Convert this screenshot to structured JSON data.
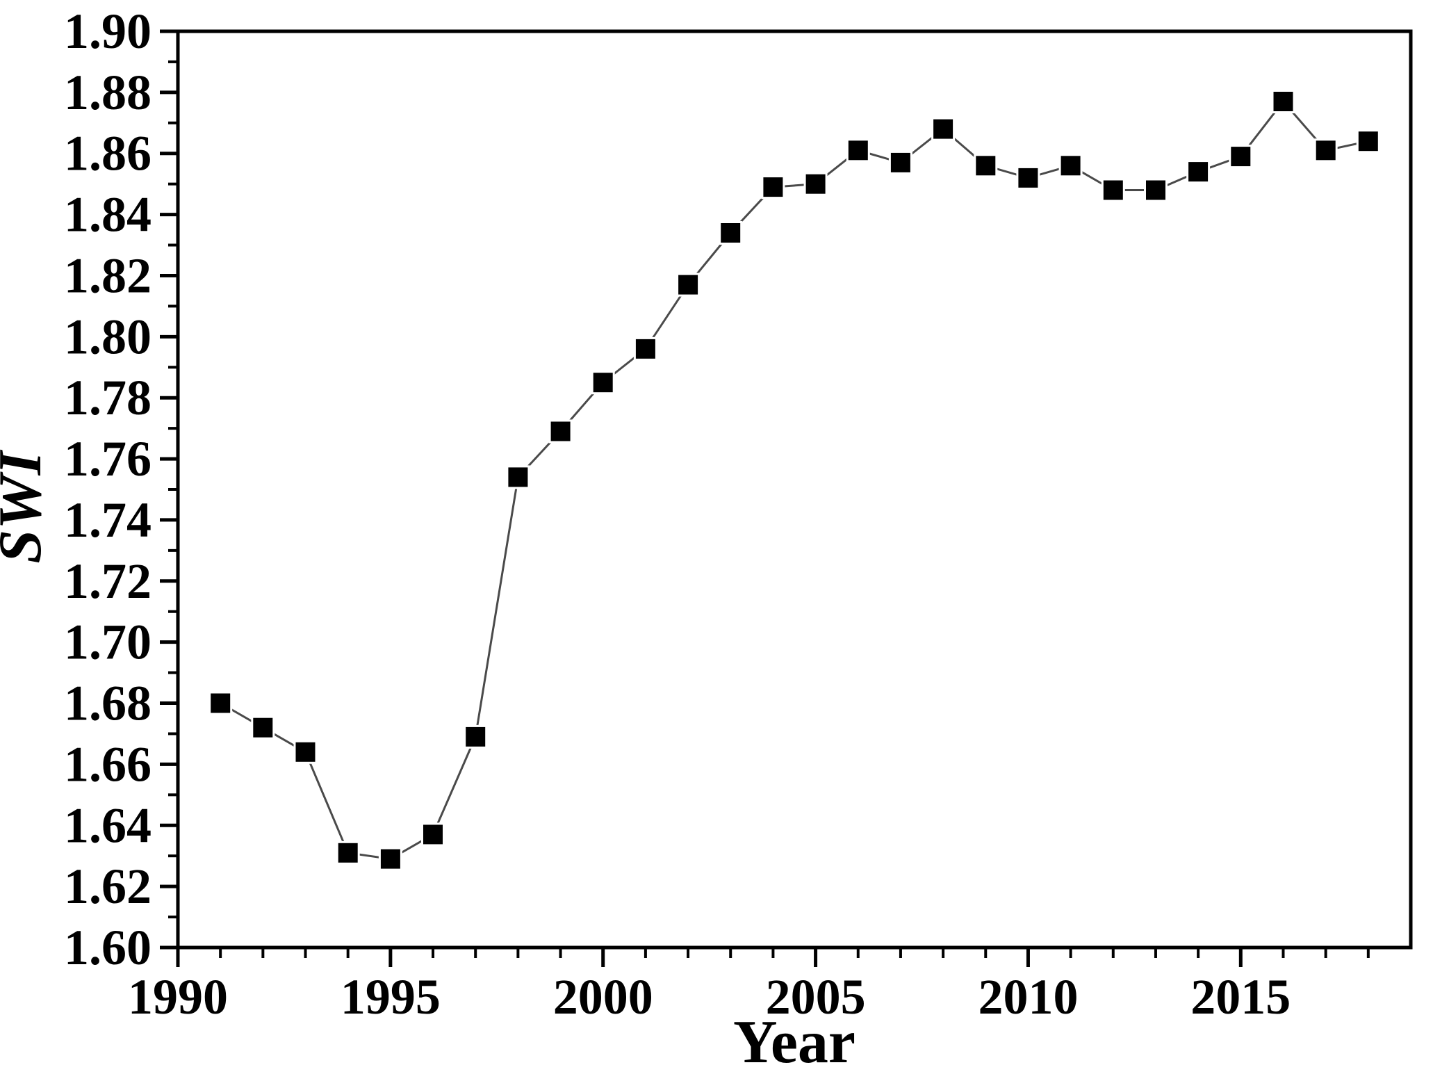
{
  "chart_data": {
    "type": "line",
    "title": "",
    "xlabel": "Year",
    "ylabel": "SWI",
    "x": [
      1991,
      1992,
      1993,
      1994,
      1995,
      1996,
      1997,
      1998,
      1999,
      2000,
      2001,
      2002,
      2003,
      2004,
      2005,
      2006,
      2007,
      2008,
      2009,
      2010,
      2011,
      2012,
      2013,
      2014,
      2015,
      2016,
      2017,
      2018
    ],
    "values": [
      1.68,
      1.672,
      1.664,
      1.631,
      1.629,
      1.637,
      1.669,
      1.754,
      1.769,
      1.785,
      1.796,
      1.817,
      1.834,
      1.849,
      1.85,
      1.861,
      1.857,
      1.868,
      1.856,
      1.852,
      1.856,
      1.848,
      1.848,
      1.854,
      1.859,
      1.877,
      1.861,
      1.864
    ],
    "xlim": [
      1990,
      2019
    ],
    "ylim": [
      1.6,
      1.9
    ],
    "x_major_ticks": [
      1990,
      1995,
      2000,
      2005,
      2010,
      2015
    ],
    "x_tick_labels": [
      "1990",
      "1995",
      "2000",
      "2005",
      "2010",
      "2015"
    ],
    "x_minor_step": 1,
    "y_major_step": 0.02,
    "y_minor_step": 0.01,
    "y_tick_labels": [
      "1.60",
      "1.62",
      "1.64",
      "1.66",
      "1.68",
      "1.70",
      "1.72",
      "1.74",
      "1.76",
      "1.78",
      "1.80",
      "1.82",
      "1.84",
      "1.86",
      "1.88",
      "1.90"
    ],
    "grid": false,
    "legend_position": "none",
    "marker": "filled-square",
    "marker_size": 31,
    "colors": {
      "marker": "#000000",
      "line": "#4a4a4a",
      "axis": "#000000",
      "text": "#000000",
      "background": "#ffffff"
    }
  }
}
